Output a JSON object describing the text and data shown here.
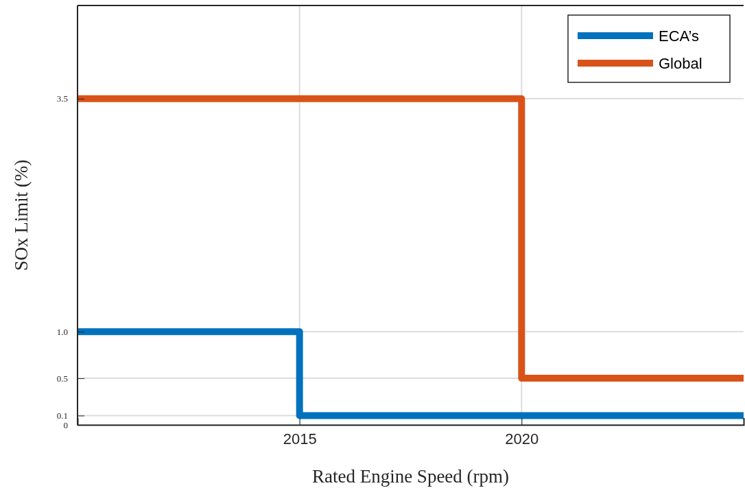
{
  "chart_data": {
    "type": "step",
    "xlabel": "Rated Engine Speed (rpm)",
    "ylabel": "SOx Limit (%)",
    "xlim": [
      2010,
      2025
    ],
    "xticks": [
      2015,
      2020
    ],
    "ylim": [
      0,
      4.5
    ],
    "yticks": [
      0,
      0.1,
      0.5,
      {
        "value": 1,
        "label": "1.0"
      },
      3.5
    ],
    "grid": true,
    "legend": "top right",
    "line_style": "solid",
    "marker": "none",
    "series": [
      {
        "name": "ECA’s",
        "color": "#0072bd",
        "x": [
          2010,
          2015,
          2025
        ],
        "values": [
          1,
          0.1,
          0.1
        ]
      },
      {
        "name": "Global",
        "color": "#d95319",
        "x": [
          2010,
          2020,
          2025
        ],
        "values": [
          3.5,
          0.5,
          0.5
        ]
      }
    ]
  }
}
